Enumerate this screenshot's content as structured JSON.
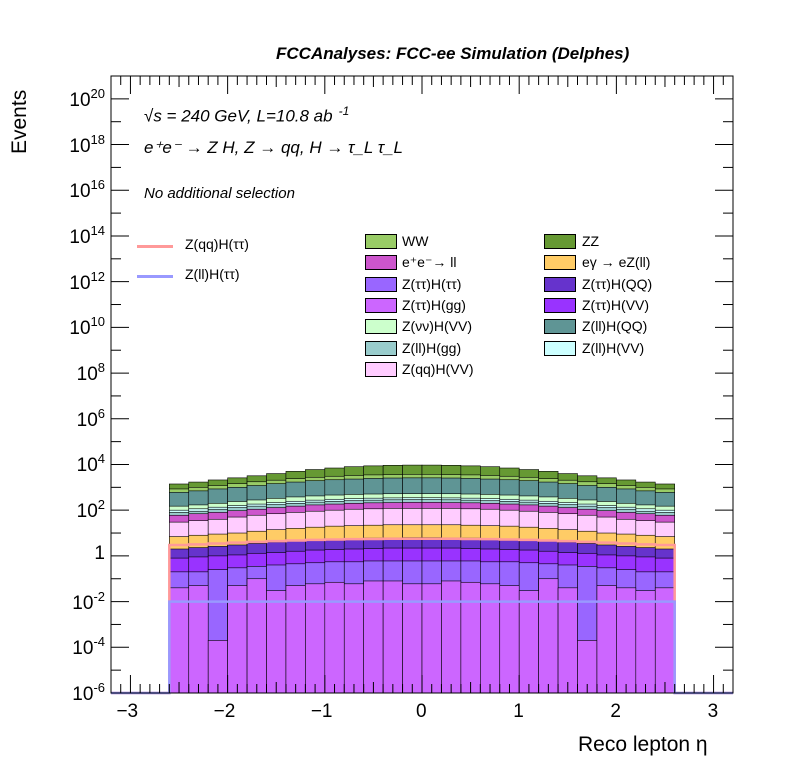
{
  "chart_data": {
    "type": "stacked-histogram",
    "title": "FCCAnalyses: FCC-ee Simulation (Delphes)",
    "xlabel": "Reco lepton η",
    "ylabel": "Events",
    "xlim": [
      -3.2,
      3.2
    ],
    "ylim": [
      1e-06,
      1e+21
    ],
    "yscale": "log",
    "x_ticks": [
      "−3",
      "−2",
      "−1",
      "0",
      "1",
      "2",
      "3"
    ],
    "y_ticks": [
      {
        "base": "10",
        "exp": "20"
      },
      {
        "base": "10",
        "exp": "18"
      },
      {
        "base": "10",
        "exp": "16"
      },
      {
        "base": "10",
        "exp": "14"
      },
      {
        "base": "10",
        "exp": "12"
      },
      {
        "base": "10",
        "exp": "10"
      },
      {
        "base": "10",
        "exp": "8"
      },
      {
        "base": "10",
        "exp": "6"
      },
      {
        "base": "10",
        "exp": "4"
      },
      {
        "base": "10",
        "exp": "2"
      },
      {
        "base": "1",
        "exp": ""
      },
      {
        "base": "10",
        "exp": "-2"
      },
      {
        "base": "10",
        "exp": "-4"
      },
      {
        "base": "10",
        "exp": "-6"
      }
    ],
    "bin_range": [
      -2.6,
      2.6
    ],
    "n_bins": 26,
    "annotations": {
      "energy": "√s = 240 GeV, L=10.8 ab",
      "energy_exp": "-1",
      "process": "e⁺e⁻ → Z H, Z → qq, H → τ_L τ_L",
      "selection": "No additional selection"
    },
    "stack_layers": [
      {
        "name": "Z(ττ)H(gg)",
        "color": "#cc66ff",
        "top": [
          0.04,
          0.05,
          0.0002,
          0.05,
          0.1,
          0.03,
          0.05,
          0.06,
          0.07,
          0.06,
          0.08,
          0.08,
          0.06,
          0.06,
          0.08,
          0.07,
          0.06,
          0.05,
          0.03,
          0.1,
          0.04,
          0.0002,
          0.05,
          0.04,
          0.03,
          0.04
        ]
      },
      {
        "name": "Z(ττ)H(ττ)",
        "color": "#9966ff",
        "top": [
          0.2,
          0.2,
          0.25,
          0.3,
          0.35,
          0.4,
          0.45,
          0.5,
          0.55,
          0.55,
          0.6,
          0.6,
          0.6,
          0.6,
          0.6,
          0.6,
          0.55,
          0.55,
          0.5,
          0.45,
          0.4,
          0.35,
          0.3,
          0.25,
          0.2,
          0.2
        ]
      },
      {
        "name": "Z(ττ)H(VV)",
        "color": "#9933ff",
        "top": [
          0.8,
          0.9,
          1.0,
          1.1,
          1.3,
          1.4,
          1.6,
          1.8,
          1.9,
          2.0,
          2.1,
          2.2,
          2.2,
          2.2,
          2.2,
          2.1,
          2.0,
          1.9,
          1.8,
          1.6,
          1.4,
          1.3,
          1.1,
          1.0,
          0.9,
          0.8
        ]
      },
      {
        "name": "Z(ττ)H(QQ)",
        "color": "#6633cc",
        "top": [
          2.0,
          2.3,
          2.6,
          3.0,
          3.5,
          4.0,
          4.5,
          5.0,
          5.4,
          5.8,
          6.0,
          6.2,
          6.3,
          6.3,
          6.2,
          6.0,
          5.8,
          5.4,
          5.0,
          4.5,
          4.0,
          3.5,
          3.0,
          2.6,
          2.3,
          2.0
        ]
      },
      {
        "name": "eγ → eZ(ll)",
        "color": "#ffcc66",
        "top": [
          7,
          8,
          9,
          10,
          12,
          14,
          16,
          18,
          20,
          21,
          22,
          23,
          23,
          23,
          23,
          22,
          21,
          20,
          18,
          16,
          14,
          12,
          10,
          9,
          8,
          7
        ]
      },
      {
        "name": "Z(qq)H(VV)",
        "color": "#ffccff",
        "top": [
          30,
          35,
          40,
          50,
          60,
          70,
          80,
          90,
          100,
          110,
          115,
          120,
          120,
          120,
          120,
          115,
          110,
          100,
          90,
          80,
          70,
          60,
          50,
          40,
          35,
          30
        ]
      },
      {
        "name": "e⁺e⁻→ ll",
        "color": "#cc55cc",
        "top": [
          60,
          70,
          80,
          95,
          110,
          130,
          150,
          170,
          185,
          200,
          210,
          215,
          220,
          220,
          215,
          210,
          200,
          185,
          170,
          150,
          130,
          110,
          95,
          80,
          70,
          60
        ]
      },
      {
        "name": "Z(ll)H(gg)",
        "color": "#99cccc",
        "top": [
          80,
          90,
          110,
          130,
          150,
          175,
          200,
          225,
          245,
          260,
          275,
          285,
          290,
          290,
          285,
          275,
          260,
          245,
          225,
          200,
          175,
          150,
          130,
          110,
          90,
          80
        ]
      },
      {
        "name": "Z(ll)H(VV)",
        "color": "#ccffff",
        "top": [
          100,
          115,
          135,
          160,
          185,
          215,
          245,
          275,
          300,
          320,
          335,
          345,
          350,
          350,
          345,
          335,
          320,
          300,
          275,
          245,
          215,
          185,
          160,
          135,
          115,
          100
        ]
      },
      {
        "name": "Z(νν)H(VV)",
        "color": "#ccffcc",
        "top": [
          150,
          170,
          200,
          240,
          280,
          330,
          380,
          420,
          460,
          490,
          510,
          525,
          530,
          530,
          525,
          510,
          490,
          460,
          420,
          380,
          330,
          280,
          240,
          200,
          170,
          150
        ]
      },
      {
        "name": "Z(ll)H(QQ)",
        "color": "#5f9595",
        "top": [
          600,
          700,
          850,
          1000,
          1200,
          1450,
          1700,
          1950,
          2150,
          2300,
          2450,
          2550,
          2600,
          2600,
          2550,
          2450,
          2300,
          2150,
          1950,
          1700,
          1450,
          1200,
          1000,
          850,
          700,
          600
        ]
      },
      {
        "name": "WW",
        "color": "#99cc66",
        "top": [
          850,
          1000,
          1200,
          1450,
          1750,
          2050,
          2400,
          2750,
          3050,
          3300,
          3500,
          3600,
          3700,
          3700,
          3600,
          3500,
          3300,
          3050,
          2750,
          2400,
          2050,
          1750,
          1450,
          1200,
          1000,
          850
        ]
      },
      {
        "name": "ZZ",
        "color": "#669933",
        "top": [
          1400,
          1700,
          2100,
          2600,
          3200,
          4000,
          5000,
          6000,
          7000,
          8000,
          8700,
          9200,
          9400,
          9400,
          9200,
          8700,
          8000,
          7000,
          6000,
          5000,
          4000,
          3200,
          2600,
          2100,
          1700,
          1400
        ]
      }
    ],
    "signal_lines": [
      {
        "name": "Z(qq)H(ττ)",
        "color": "#ff9999",
        "values": [
          3,
          3.2,
          3.5,
          3.8,
          4.1,
          4.4,
          4.7,
          5,
          5.2,
          5.4,
          5.5,
          5.6,
          5.6,
          5.6,
          5.6,
          5.5,
          5.4,
          5.2,
          5,
          4.7,
          4.4,
          4.1,
          3.8,
          3.5,
          3.2,
          3
        ]
      },
      {
        "name": "Z(ll)H(ττ)",
        "color": "#9999ff",
        "values": [
          0.01,
          0.01,
          0.01,
          0.01,
          0.01,
          0.01,
          0.01,
          0.01,
          0.01,
          0.01,
          0.01,
          0.01,
          0.01,
          0.01,
          0.01,
          0.01,
          0.01,
          0.01,
          0.01,
          0.01,
          0.01,
          0.01,
          0.01,
          0.01,
          0.01,
          0.01
        ]
      }
    ],
    "legend": {
      "lines": [
        {
          "label": "Z(qq)H(ττ)",
          "color": "#ff9999"
        },
        {
          "label": "Z(ll)H(ττ)",
          "color": "#9999ff"
        }
      ],
      "col1": [
        {
          "label": "WW",
          "color": "#99cc66"
        },
        {
          "label": "e⁺e⁻→ ll",
          "color": "#cc55cc"
        },
        {
          "label": "Z(ττ)H(ττ)",
          "color": "#9966ff"
        },
        {
          "label": "Z(ττ)H(gg)",
          "color": "#cc66ff"
        },
        {
          "label": "Z(νν)H(VV)",
          "color": "#ccffcc"
        },
        {
          "label": "Z(ll)H(gg)",
          "color": "#99cccc"
        },
        {
          "label": "Z(qq)H(VV)",
          "color": "#ffccff"
        }
      ],
      "col2": [
        {
          "label": "ZZ",
          "color": "#669933"
        },
        {
          "label": "eγ → eZ(ll)",
          "color": "#ffcc66"
        },
        {
          "label": "Z(ττ)H(QQ)",
          "color": "#6633cc"
        },
        {
          "label": "Z(ττ)H(VV)",
          "color": "#9933ff"
        },
        {
          "label": "Z(ll)H(QQ)",
          "color": "#5f9595"
        },
        {
          "label": "Z(ll)H(VV)",
          "color": "#ccffff"
        }
      ]
    }
  }
}
